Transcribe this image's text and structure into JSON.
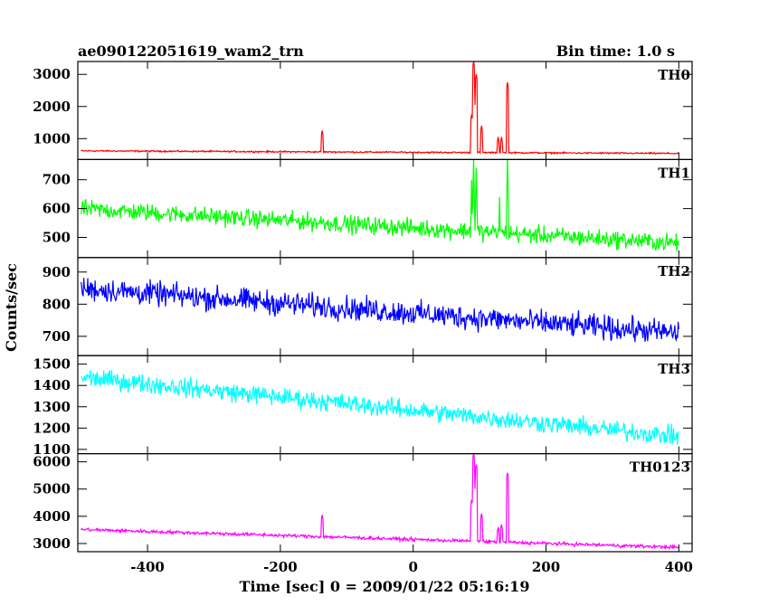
{
  "chart_data": {
    "type": "line",
    "title": "ae090122051619_wam2_trn",
    "subtitle": "Bin time: 1.0 s",
    "xlabel": "Time [sec] 0 = 2009/01/22 05:16:19",
    "ylabel": "Counts/sec",
    "xlim": [
      -505,
      420
    ],
    "x_ticks": [
      -400,
      -200,
      0,
      200,
      400
    ],
    "bin_time_s": 1.0,
    "panels": [
      {
        "name": "TH0",
        "color": "#ff0000",
        "ylim": [
          350,
          3400
        ],
        "y_ticks": [
          1000,
          2000,
          3000
        ],
        "baseline": [
          [
            -505,
            620
          ],
          [
            400,
            540
          ]
        ],
        "noise": 35,
        "spikes": [
          [
            -137,
            1250
          ],
          [
            88,
            1750
          ],
          [
            91,
            3400
          ],
          [
            93,
            2050
          ],
          [
            95,
            3000
          ],
          [
            103,
            1400
          ],
          [
            128,
            1050
          ],
          [
            133,
            1050
          ],
          [
            142,
            2750
          ]
        ]
      },
      {
        "name": "TH1",
        "color": "#00ff00",
        "ylim": [
          430,
          770
        ],
        "y_ticks": [
          500,
          600,
          700
        ],
        "baseline": [
          [
            -505,
            600
          ],
          [
            400,
            480
          ]
        ],
        "noise": 45,
        "spikes": [
          [
            88,
            700
          ],
          [
            91,
            780
          ],
          [
            95,
            740
          ],
          [
            142,
            780
          ],
          [
            130,
            640
          ]
        ]
      },
      {
        "name": "TH2",
        "color": "#0000ff",
        "ylim": [
          640,
          945
        ],
        "y_ticks": [
          700,
          800,
          900
        ],
        "baseline": [
          [
            -505,
            850
          ],
          [
            400,
            710
          ]
        ],
        "noise": 55,
        "spikes": []
      },
      {
        "name": "TH3",
        "color": "#00ffff",
        "ylim": [
          1080,
          1540
        ],
        "y_ticks": [
          1100,
          1200,
          1300,
          1400,
          1500
        ],
        "baseline": [
          [
            -505,
            1440
          ],
          [
            400,
            1160
          ]
        ],
        "noise": 65,
        "spikes": []
      },
      {
        "name": "TH0123",
        "color": "#ff00ff",
        "ylim": [
          2700,
          6300
        ],
        "y_ticks": [
          3000,
          4000,
          5000,
          6000
        ],
        "baseline": [
          [
            -505,
            3520
          ],
          [
            400,
            2860
          ]
        ],
        "noise": 90,
        "spikes": [
          [
            -137,
            4050
          ],
          [
            88,
            4600
          ],
          [
            91,
            6300
          ],
          [
            93,
            5000
          ],
          [
            95,
            5900
          ],
          [
            103,
            4100
          ],
          [
            128,
            3600
          ],
          [
            133,
            3700
          ],
          [
            142,
            5600
          ]
        ]
      }
    ]
  }
}
